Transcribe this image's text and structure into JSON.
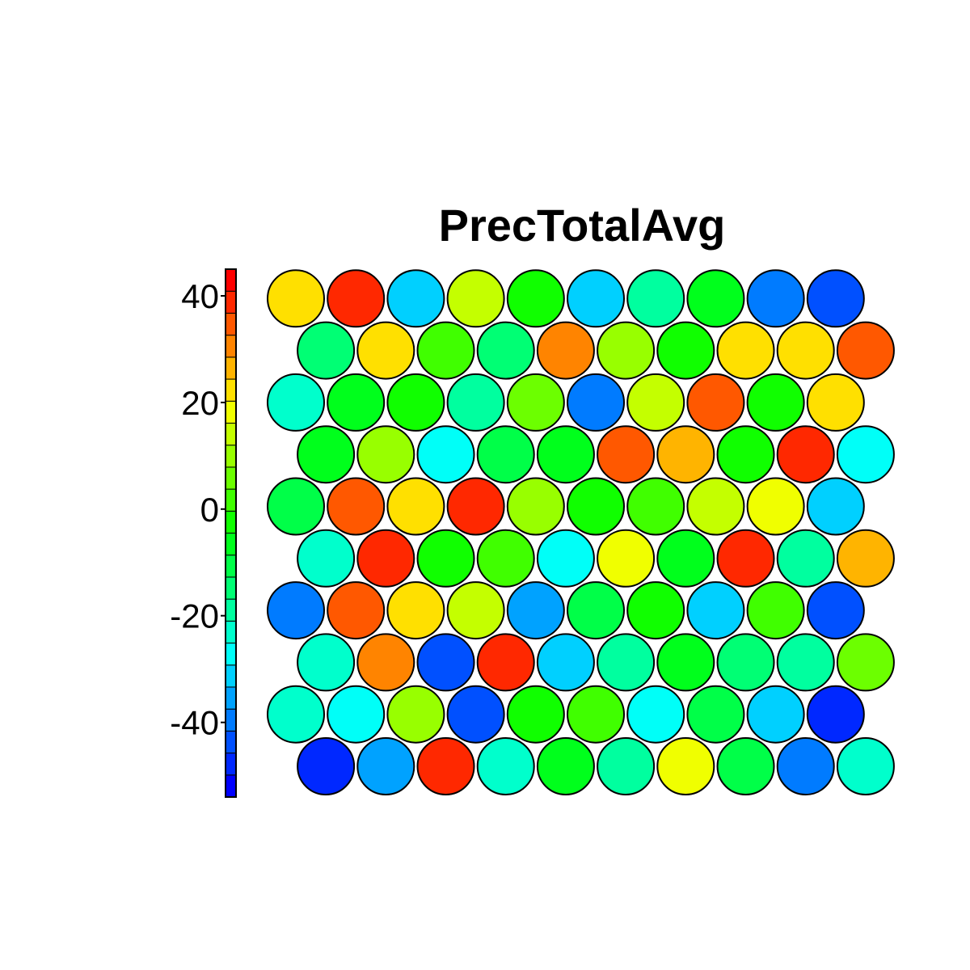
{
  "chart_data": {
    "type": "heatmap",
    "subtype": "som-hexagonal-codes",
    "title": "PrecTotalAvg",
    "grid": {
      "columns": 10,
      "rows": 10,
      "topology": "hexagonal"
    },
    "colorbar": {
      "min": -54,
      "max": 45,
      "ticks": [
        40,
        20,
        0,
        -20,
        -40
      ],
      "tick_labels": [
        "40",
        "20",
        "0",
        "-20",
        "-40"
      ],
      "colors": [
        "#0000ff",
        "#0028ff",
        "#0050ff",
        "#007bff",
        "#00a2ff",
        "#00d0ff",
        "#00fff8",
        "#00ffcc",
        "#00ff9f",
        "#00ff74",
        "#00ff48",
        "#00ff1c",
        "#10ff00",
        "#40ff00",
        "#6cff00",
        "#98ff00",
        "#c4ff00",
        "#f0ff00",
        "#ffe000",
        "#ffb400",
        "#ff8400",
        "#ff5800",
        "#ff2800",
        "#ff0000"
      ],
      "position": "left"
    },
    "values": [
      [
        -48,
        -35,
        38,
        -22,
        -6,
        -20,
        20,
        -10,
        -40,
        -22
      ],
      [
        -22,
        -29,
        9,
        -42,
        -3,
        2,
        -29,
        -10,
        -31,
        -48
      ],
      [
        -25,
        29,
        -42,
        37,
        -32,
        -20,
        -6,
        -16,
        -18,
        7
      ],
      [
        -38,
        33,
        21,
        15,
        -34,
        -10,
        -4,
        -32,
        3,
        -44
      ],
      [
        -23,
        38,
        -4,
        3,
        -28,
        20,
        -6,
        37,
        -20,
        27
      ],
      [
        -12,
        33,
        21,
        38,
        8,
        -4,
        3,
        16,
        20,
        -33
      ],
      [
        -7,
        9,
        -28,
        -12,
        -5,
        34,
        26,
        -3,
        39,
        -27
      ],
      [
        -22,
        -7,
        -4,
        -17,
        4,
        -39,
        12,
        35,
        -3,
        21
      ],
      [
        -15,
        24,
        3,
        -15,
        32,
        10,
        -3,
        24,
        21,
        36
      ],
      [
        24,
        39,
        -30,
        13,
        -3,
        -30,
        -21,
        -5,
        -41,
        -43
      ]
    ]
  }
}
